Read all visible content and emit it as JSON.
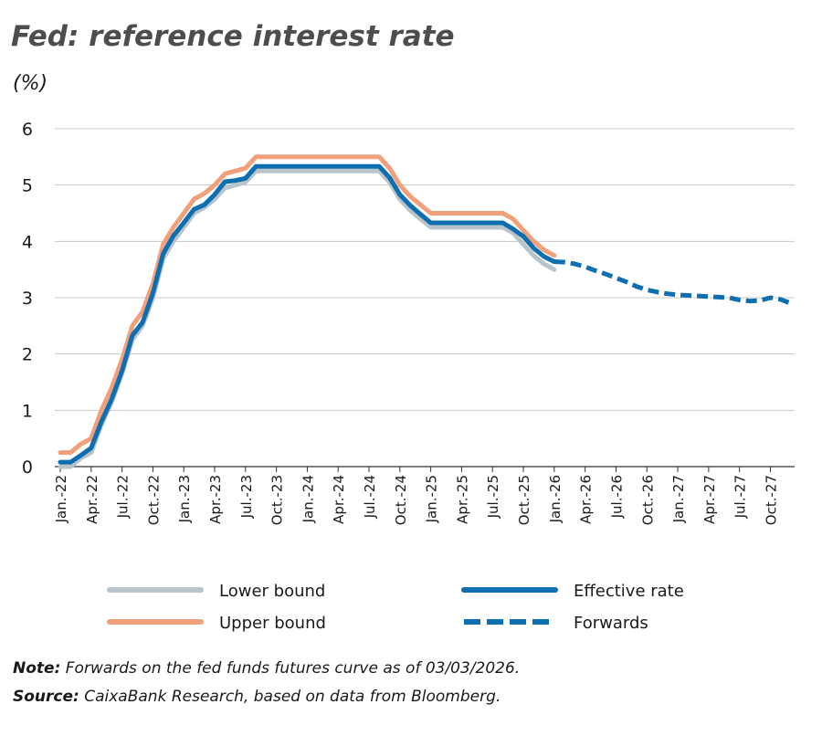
{
  "chart_data": {
    "type": "line",
    "title": "Fed: reference interest rate",
    "subtitle": "(%)",
    "categories": [
      "Jan.-22",
      null,
      null,
      "Apr.-22",
      null,
      null,
      "Jul.-22",
      null,
      null,
      "Oct.-22",
      null,
      null,
      "Jan.-23",
      null,
      null,
      "Apr.-23",
      null,
      null,
      "Jul.-23",
      null,
      null,
      "Oct.-23",
      null,
      null,
      "Jan.-24",
      null,
      null,
      "Apr.-24",
      null,
      null,
      "Jul.-24",
      null,
      null,
      "Oct.-24",
      null,
      null,
      "Jan.-25",
      null,
      null,
      "Apr.-25",
      null,
      null,
      "Jul.-25",
      null,
      null,
      "Oct.-25",
      null,
      null,
      "Jan.-26",
      null,
      null,
      "Apr.-26",
      null,
      null,
      "Jul.-26",
      null,
      null,
      "Oct.-26",
      null,
      null,
      "Jan.-27",
      null,
      null,
      "Apr.-27",
      null,
      null,
      "Jul.-27",
      null,
      null,
      "Oct.-27",
      null,
      null
    ],
    "series": [
      {
        "name": "Lower bound",
        "color": "#b8c3ca",
        "line_style": "solid",
        "values": [
          0.0,
          0.0,
          0.15,
          0.25,
          0.75,
          1.15,
          1.65,
          2.25,
          2.5,
          3.0,
          3.7,
          4.0,
          4.25,
          4.5,
          4.6,
          4.75,
          4.95,
          5.0,
          5.05,
          5.25,
          5.25,
          5.25,
          5.25,
          5.25,
          5.25,
          5.25,
          5.25,
          5.25,
          5.25,
          5.25,
          5.25,
          5.25,
          5.05,
          4.75,
          4.55,
          4.4,
          4.25,
          4.25,
          4.25,
          4.25,
          4.25,
          4.25,
          4.25,
          4.25,
          4.15,
          3.95,
          3.75,
          3.6,
          3.5,
          null,
          null,
          null,
          null,
          null,
          null,
          null,
          null,
          null,
          null,
          null,
          null,
          null,
          null,
          null,
          null,
          null,
          null,
          null,
          null,
          null,
          null,
          null
        ]
      },
      {
        "name": "Upper bound",
        "color": "#f0a07a",
        "line_style": "solid",
        "values": [
          0.25,
          0.25,
          0.4,
          0.5,
          1.0,
          1.4,
          1.9,
          2.5,
          2.75,
          3.25,
          3.95,
          4.25,
          4.5,
          4.75,
          4.85,
          5.0,
          5.2,
          5.25,
          5.3,
          5.5,
          5.5,
          5.5,
          5.5,
          5.5,
          5.5,
          5.5,
          5.5,
          5.5,
          5.5,
          5.5,
          5.5,
          5.5,
          5.3,
          5.0,
          4.8,
          4.65,
          4.5,
          4.5,
          4.5,
          4.5,
          4.5,
          4.5,
          4.5,
          4.5,
          4.4,
          4.2,
          4.0,
          3.85,
          3.75,
          null,
          null,
          null,
          null,
          null,
          null,
          null,
          null,
          null,
          null,
          null,
          null,
          null,
          null,
          null,
          null,
          null,
          null,
          null,
          null,
          null,
          null,
          null
        ]
      },
      {
        "name": "Effective rate",
        "color": "#0d6eb0",
        "line_style": "solid",
        "values": [
          0.08,
          0.08,
          0.2,
          0.33,
          0.8,
          1.2,
          1.7,
          2.33,
          2.56,
          3.08,
          3.78,
          4.1,
          4.33,
          4.57,
          4.65,
          4.83,
          5.06,
          5.08,
          5.12,
          5.33,
          5.33,
          5.33,
          5.33,
          5.33,
          5.33,
          5.33,
          5.33,
          5.33,
          5.33,
          5.33,
          5.33,
          5.33,
          5.13,
          4.83,
          4.64,
          4.48,
          4.33,
          4.33,
          4.33,
          4.33,
          4.33,
          4.33,
          4.33,
          4.33,
          4.22,
          4.09,
          3.88,
          3.73,
          3.64,
          null,
          null,
          null,
          null,
          null,
          null,
          null,
          null,
          null,
          null,
          null,
          null,
          null,
          null,
          null,
          null,
          null,
          null,
          null,
          null,
          null,
          null,
          null
        ]
      },
      {
        "name": "Forwards",
        "color": "#0d6eb0",
        "line_style": "dashed",
        "values": [
          null,
          null,
          null,
          null,
          null,
          null,
          null,
          null,
          null,
          null,
          null,
          null,
          null,
          null,
          null,
          null,
          null,
          null,
          null,
          null,
          null,
          null,
          null,
          null,
          null,
          null,
          null,
          null,
          null,
          null,
          null,
          null,
          null,
          null,
          null,
          null,
          null,
          null,
          null,
          null,
          null,
          null,
          null,
          null,
          null,
          null,
          null,
          null,
          3.64,
          3.63,
          3.6,
          3.55,
          3.48,
          3.42,
          3.35,
          3.28,
          3.2,
          3.14,
          3.1,
          3.07,
          3.05,
          3.04,
          3.03,
          3.02,
          3.01,
          3.0,
          2.96,
          2.94,
          2.95,
          3.0,
          2.97,
          2.9
        ]
      }
    ],
    "ylim": [
      0,
      6
    ],
    "yticks": [
      0,
      1,
      2,
      3,
      4,
      5,
      6
    ],
    "grid": true,
    "note": {
      "label": "Note:",
      "text": "Forwards on the fed funds futures curve as of 03/03/2026."
    },
    "source": {
      "label": "Source:",
      "text": "CaixaBank Research, based on data from Bloomberg."
    }
  }
}
